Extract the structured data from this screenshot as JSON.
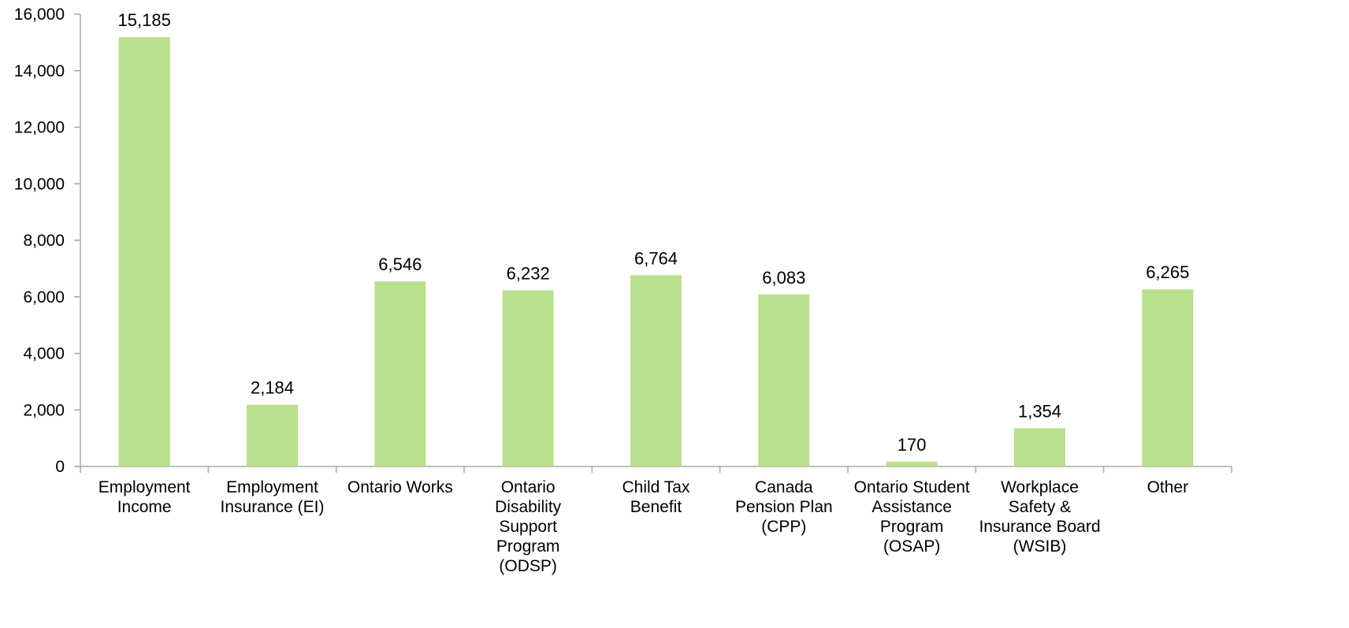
{
  "chart_data": {
    "type": "bar",
    "categories": [
      [
        "Employment",
        "Income"
      ],
      [
        "Employment",
        "Insurance (EI)"
      ],
      [
        "Ontario Works"
      ],
      [
        "Ontario",
        "Disability",
        "Support",
        "Program",
        "(ODSP)"
      ],
      [
        "Child Tax",
        "Benefit"
      ],
      [
        "Canada",
        "Pension Plan",
        "(CPP)"
      ],
      [
        "Ontario Student",
        "Assistance",
        "Program",
        "(OSAP)"
      ],
      [
        "Workplace",
        "Safety &",
        "Insurance Board",
        "(WSIB)"
      ],
      [
        "Other"
      ]
    ],
    "values": [
      15185,
      2184,
      6546,
      6232,
      6764,
      6083,
      170,
      1354,
      6265
    ],
    "data_labels": [
      "15,185",
      "2,184",
      "6,546",
      "6,232",
      "6,764",
      "6,083",
      "170",
      "1,354",
      "6,265"
    ],
    "ylim": [
      0,
      16000
    ],
    "yticks": [
      0,
      2000,
      4000,
      6000,
      8000,
      10000,
      12000,
      14000,
      16000
    ],
    "ytick_labels": [
      "0",
      "2,000",
      "4,000",
      "6,000",
      "8,000",
      "10,000",
      "12,000",
      "14,000",
      "16,000"
    ],
    "grid": false,
    "legend": "none",
    "bar_color": "#b9e08c",
    "axis_color": "#a6a6a6"
  }
}
